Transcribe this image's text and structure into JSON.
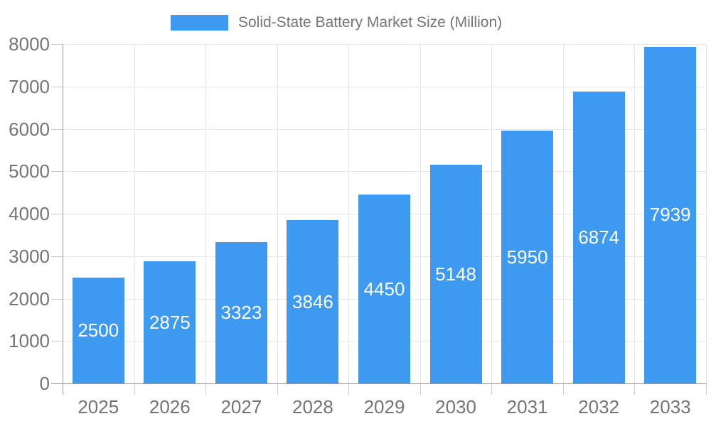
{
  "legend": {
    "label": "Solid-State Battery Market Size (Million)"
  },
  "chart_data": {
    "type": "bar",
    "title": "Solid-State Battery Market Size (Million)",
    "categories": [
      "2025",
      "2026",
      "2027",
      "2028",
      "2029",
      "2030",
      "2031",
      "2032",
      "2033"
    ],
    "values": [
      2500,
      2875,
      3323,
      3846,
      4450,
      5148,
      5950,
      6874,
      7939
    ],
    "value_labels": [
      "2500",
      "2875",
      "3323",
      "3846",
      "4450",
      "5148",
      "5950",
      "6874",
      "7939"
    ],
    "xlabel": "",
    "ylabel": "",
    "ylim": [
      0,
      8000
    ],
    "ytick_step": 1000,
    "yticks": [
      0,
      1000,
      2000,
      3000,
      4000,
      5000,
      6000,
      7000,
      8000
    ],
    "grid": true,
    "legend_position": "top",
    "colors": {
      "bar": "#3D9AF0",
      "bar_value_text": "#ffffff",
      "axis_text": "#757575",
      "axis_line": "#999999",
      "tick_line": "#cccccc",
      "gridline": "#e6e6e6",
      "background": "#ffffff"
    }
  }
}
